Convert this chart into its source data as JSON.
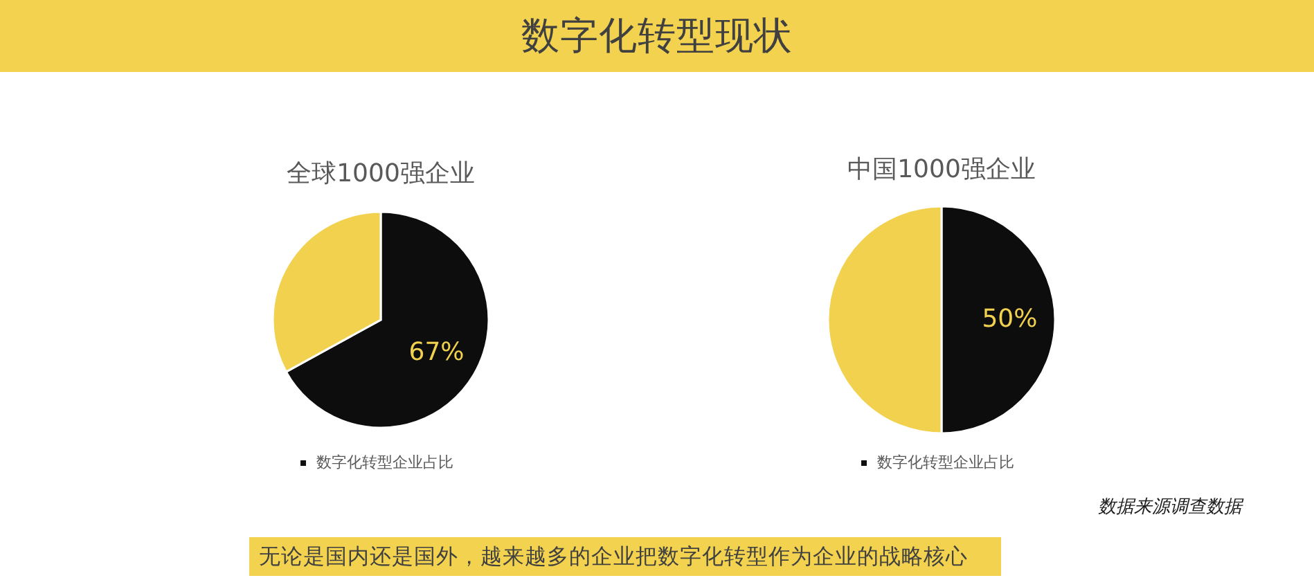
{
  "chart_data": [
    {
      "type": "other",
      "title": "数字化转型现状"
    },
    {
      "type": "pie",
      "title": "全球1000强企业",
      "categories": [
        "数字化转型企业占比",
        null
      ],
      "values": [
        67,
        33
      ],
      "colors": [
        "#0d0d0d",
        "#f2d14f"
      ],
      "value_labels": [
        "67%",
        null
      ],
      "legend": "bottom"
    },
    {
      "type": "pie",
      "title": "中国1000强企业",
      "categories": [
        "数字化转型企业占比",
        null
      ],
      "values": [
        50,
        50
      ],
      "colors": [
        "#0d0d0d",
        "#f2d14f"
      ],
      "value_labels": [
        "50%",
        null
      ],
      "legend": "bottom"
    },
    {
      "type": "other",
      "annotations": [
        "数据来源调查数据",
        "无论是国内还是国外，越来越多的企业把数字化转型作为企业的战略核心"
      ]
    }
  ]
}
